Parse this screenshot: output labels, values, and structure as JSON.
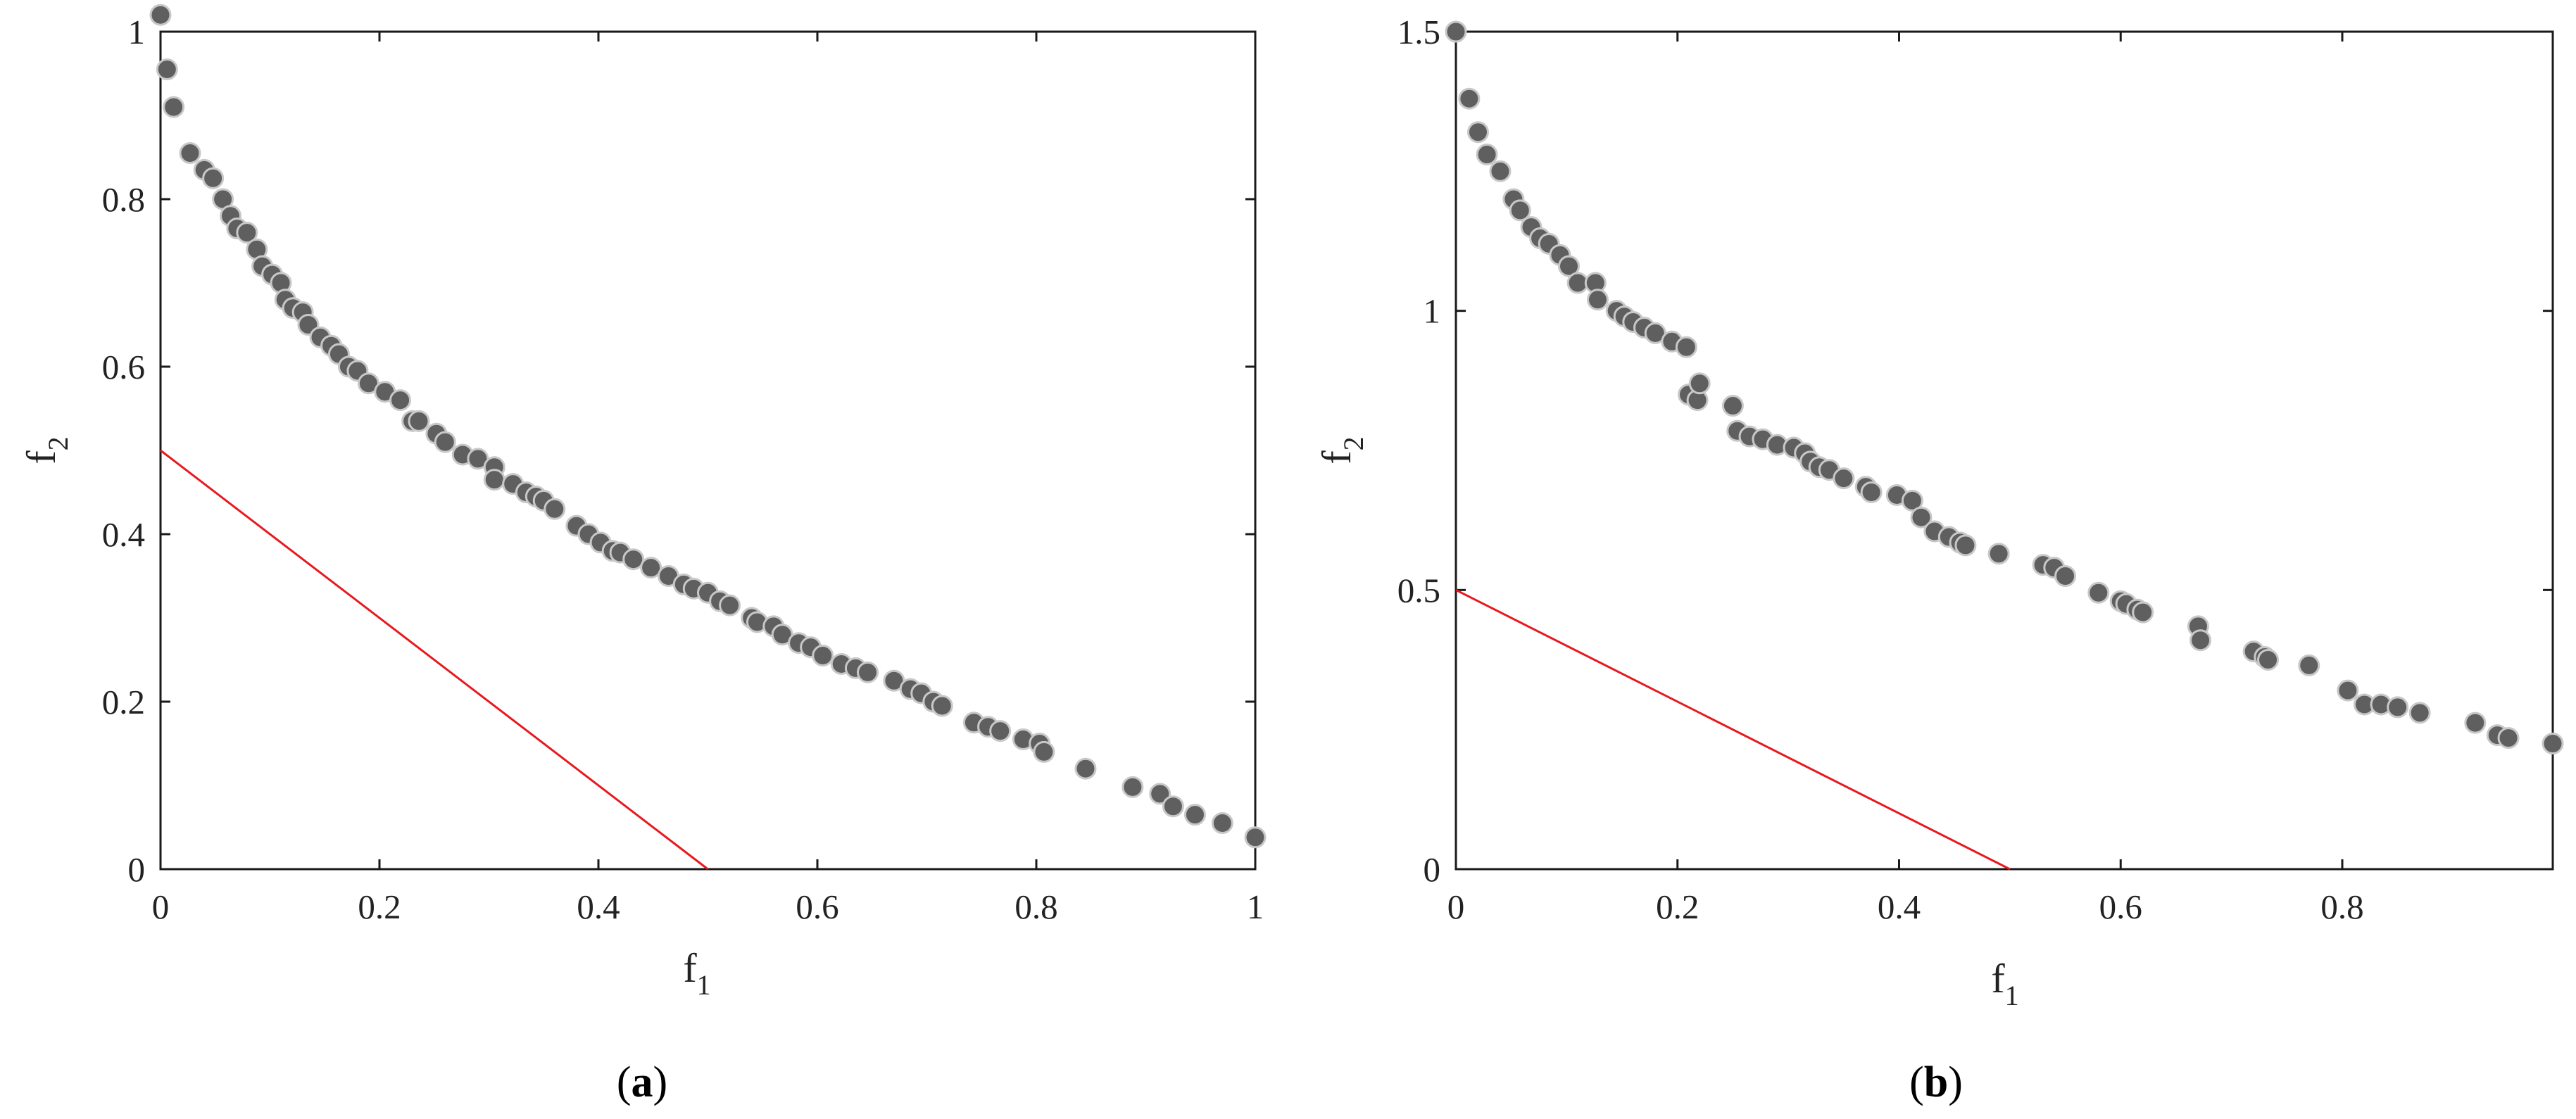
{
  "colors": {
    "marker_fill": "#5f5f5f",
    "marker_edge": "#c8c8c8",
    "reference_line": "#e8191e",
    "axis": "#1a1a1a"
  },
  "chart_data": [
    {
      "type": "scatter",
      "caption": "(a)",
      "xlabel": "f1",
      "ylabel": "f2",
      "xlim": [
        0,
        1
      ],
      "ylim": [
        0,
        1
      ],
      "x_ticks": [
        "0",
        "0.2",
        "0.4",
        "0.6",
        "0.8",
        "1"
      ],
      "x_tick_values": [
        0,
        0.2,
        0.4,
        0.6,
        0.8,
        1
      ],
      "y_ticks": [
        "0",
        "0.2",
        "0.4",
        "0.6",
        "0.8",
        "1"
      ],
      "y_tick_values": [
        0,
        0.2,
        0.4,
        0.6,
        0.8,
        1
      ],
      "grid": false,
      "reference_line": {
        "x": [
          0,
          0.5
        ],
        "y": [
          0.5,
          0
        ]
      },
      "series": [
        {
          "x": [
            0.0,
            0.006,
            0.012,
            0.027,
            0.04,
            0.048,
            0.057,
            0.064,
            0.07,
            0.079,
            0.088,
            0.093,
            0.102,
            0.11,
            0.114,
            0.121,
            0.13,
            0.135,
            0.146,
            0.156,
            0.163,
            0.172,
            0.18,
            0.19,
            0.205,
            0.219,
            0.23,
            0.236,
            0.252,
            0.26,
            0.276,
            0.29,
            0.305,
            0.305,
            0.322,
            0.334,
            0.343,
            0.35,
            0.36,
            0.38,
            0.391,
            0.402,
            0.413,
            0.42,
            0.432,
            0.448,
            0.464,
            0.478,
            0.487,
            0.5,
            0.511,
            0.52,
            0.54,
            0.545,
            0.56,
            0.568,
            0.583,
            0.594,
            0.605,
            0.622,
            0.635,
            0.646,
            0.67,
            0.685,
            0.695,
            0.706,
            0.714,
            0.743,
            0.756,
            0.767,
            0.788,
            0.803,
            0.807,
            0.845,
            0.888,
            0.913,
            0.925,
            0.945,
            0.97,
            1.0
          ],
          "y": [
            1.02,
            0.955,
            0.91,
            0.855,
            0.835,
            0.825,
            0.8,
            0.78,
            0.765,
            0.76,
            0.74,
            0.72,
            0.71,
            0.7,
            0.68,
            0.67,
            0.665,
            0.65,
            0.635,
            0.625,
            0.615,
            0.6,
            0.595,
            0.58,
            0.57,
            0.56,
            0.535,
            0.535,
            0.52,
            0.51,
            0.495,
            0.49,
            0.48,
            0.465,
            0.46,
            0.45,
            0.445,
            0.44,
            0.43,
            0.41,
            0.4,
            0.39,
            0.38,
            0.378,
            0.37,
            0.36,
            0.35,
            0.34,
            0.335,
            0.33,
            0.32,
            0.315,
            0.3,
            0.295,
            0.29,
            0.28,
            0.27,
            0.265,
            0.255,
            0.245,
            0.24,
            0.235,
            0.225,
            0.215,
            0.21,
            0.2,
            0.195,
            0.175,
            0.17,
            0.165,
            0.155,
            0.15,
            0.14,
            0.12,
            0.098,
            0.09,
            0.075,
            0.065,
            0.055,
            0.038
          ]
        }
      ]
    },
    {
      "type": "scatter",
      "caption": "(b)",
      "xlabel": "f1",
      "ylabel": "f2",
      "xlim": [
        0,
        0.99
      ],
      "ylim": [
        0,
        1.5
      ],
      "x_ticks": [
        "0",
        "0.2",
        "0.4",
        "0.6",
        "0.8"
      ],
      "x_tick_values": [
        0,
        0.2,
        0.4,
        0.6,
        0.8
      ],
      "y_ticks": [
        "0",
        "0.5",
        "1",
        "1.5"
      ],
      "y_tick_values": [
        0,
        0.5,
        1,
        1.5
      ],
      "grid": false,
      "reference_line": {
        "x": [
          0,
          0.5
        ],
        "y": [
          0.5,
          0
        ]
      },
      "series": [
        {
          "x": [
            0.0,
            0.012,
            0.02,
            0.028,
            0.04,
            0.052,
            0.058,
            0.068,
            0.076,
            0.084,
            0.094,
            0.102,
            0.11,
            0.126,
            0.128,
            0.145,
            0.152,
            0.16,
            0.17,
            0.18,
            0.195,
            0.208,
            0.21,
            0.218,
            0.22,
            0.25,
            0.254,
            0.265,
            0.277,
            0.29,
            0.305,
            0.315,
            0.32,
            0.328,
            0.337,
            0.35,
            0.37,
            0.375,
            0.398,
            0.412,
            0.42,
            0.432,
            0.445,
            0.455,
            0.46,
            0.49,
            0.53,
            0.54,
            0.55,
            0.58,
            0.6,
            0.605,
            0.615,
            0.62,
            0.67,
            0.672,
            0.72,
            0.73,
            0.733,
            0.77,
            0.805,
            0.82,
            0.835,
            0.85,
            0.87,
            0.92,
            0.94,
            0.95,
            0.99
          ],
          "y": [
            1.5,
            1.38,
            1.32,
            1.28,
            1.25,
            1.2,
            1.18,
            1.15,
            1.13,
            1.12,
            1.1,
            1.08,
            1.05,
            1.05,
            1.02,
            1.0,
            0.99,
            0.98,
            0.97,
            0.96,
            0.945,
            0.935,
            0.85,
            0.84,
            0.87,
            0.83,
            0.785,
            0.775,
            0.77,
            0.76,
            0.755,
            0.745,
            0.73,
            0.72,
            0.715,
            0.7,
            0.685,
            0.675,
            0.67,
            0.66,
            0.63,
            0.605,
            0.595,
            0.585,
            0.58,
            0.565,
            0.545,
            0.54,
            0.525,
            0.495,
            0.48,
            0.475,
            0.465,
            0.46,
            0.435,
            0.41,
            0.39,
            0.38,
            0.375,
            0.365,
            0.32,
            0.295,
            0.295,
            0.29,
            0.28,
            0.262,
            0.24,
            0.235,
            0.225
          ]
        }
      ]
    }
  ]
}
